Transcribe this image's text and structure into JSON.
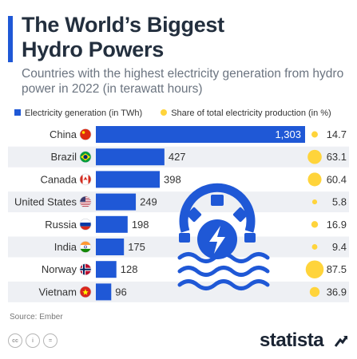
{
  "title_line1": "The World’s Biggest",
  "title_line2": "Hydro Powers",
  "subtitle": "Countries with the highest electricity generation from hydro power in 2022 (in terawatt hours)",
  "legend": {
    "bars": "Electricity generation (in TWh)",
    "dots": "Share of total electricity production (in %)"
  },
  "source": "Source: Ember",
  "brand": "statista",
  "colors": {
    "bar": "#1f58d6",
    "dot": "#ffd43b",
    "row_band": "#eef0f4",
    "accent": "#1f58d6"
  },
  "chart_data": {
    "type": "bar",
    "orientation": "horizontal",
    "categories": [
      "China",
      "Brazil",
      "Canada",
      "United States",
      "Russia",
      "India",
      "Norway",
      "Vietnam"
    ],
    "flags": [
      "china-flag-icon",
      "brazil-flag-icon",
      "canada-flag-icon",
      "usa-flag-icon",
      "russia-flag-icon",
      "india-flag-icon",
      "norway-flag-icon",
      "vietnam-flag-icon"
    ],
    "series": [
      {
        "name": "Electricity generation (in TWh)",
        "values": [
          1303,
          427,
          398,
          249,
          198,
          175,
          128,
          96
        ],
        "labels": [
          "1,303",
          "427",
          "398",
          "249",
          "198",
          "175",
          "128",
          "96"
        ]
      },
      {
        "name": "Share of total electricity production (in %)",
        "values": [
          14.7,
          63.1,
          60.4,
          5.8,
          16.9,
          9.4,
          87.5,
          36.9
        ],
        "labels": [
          "14.7",
          "63.1",
          "60.4",
          "5.8",
          "16.9",
          "9.4",
          "87.5",
          "36.9"
        ]
      }
    ],
    "xlim": [
      0,
      1303
    ],
    "grid": false,
    "legend_position": "top"
  }
}
